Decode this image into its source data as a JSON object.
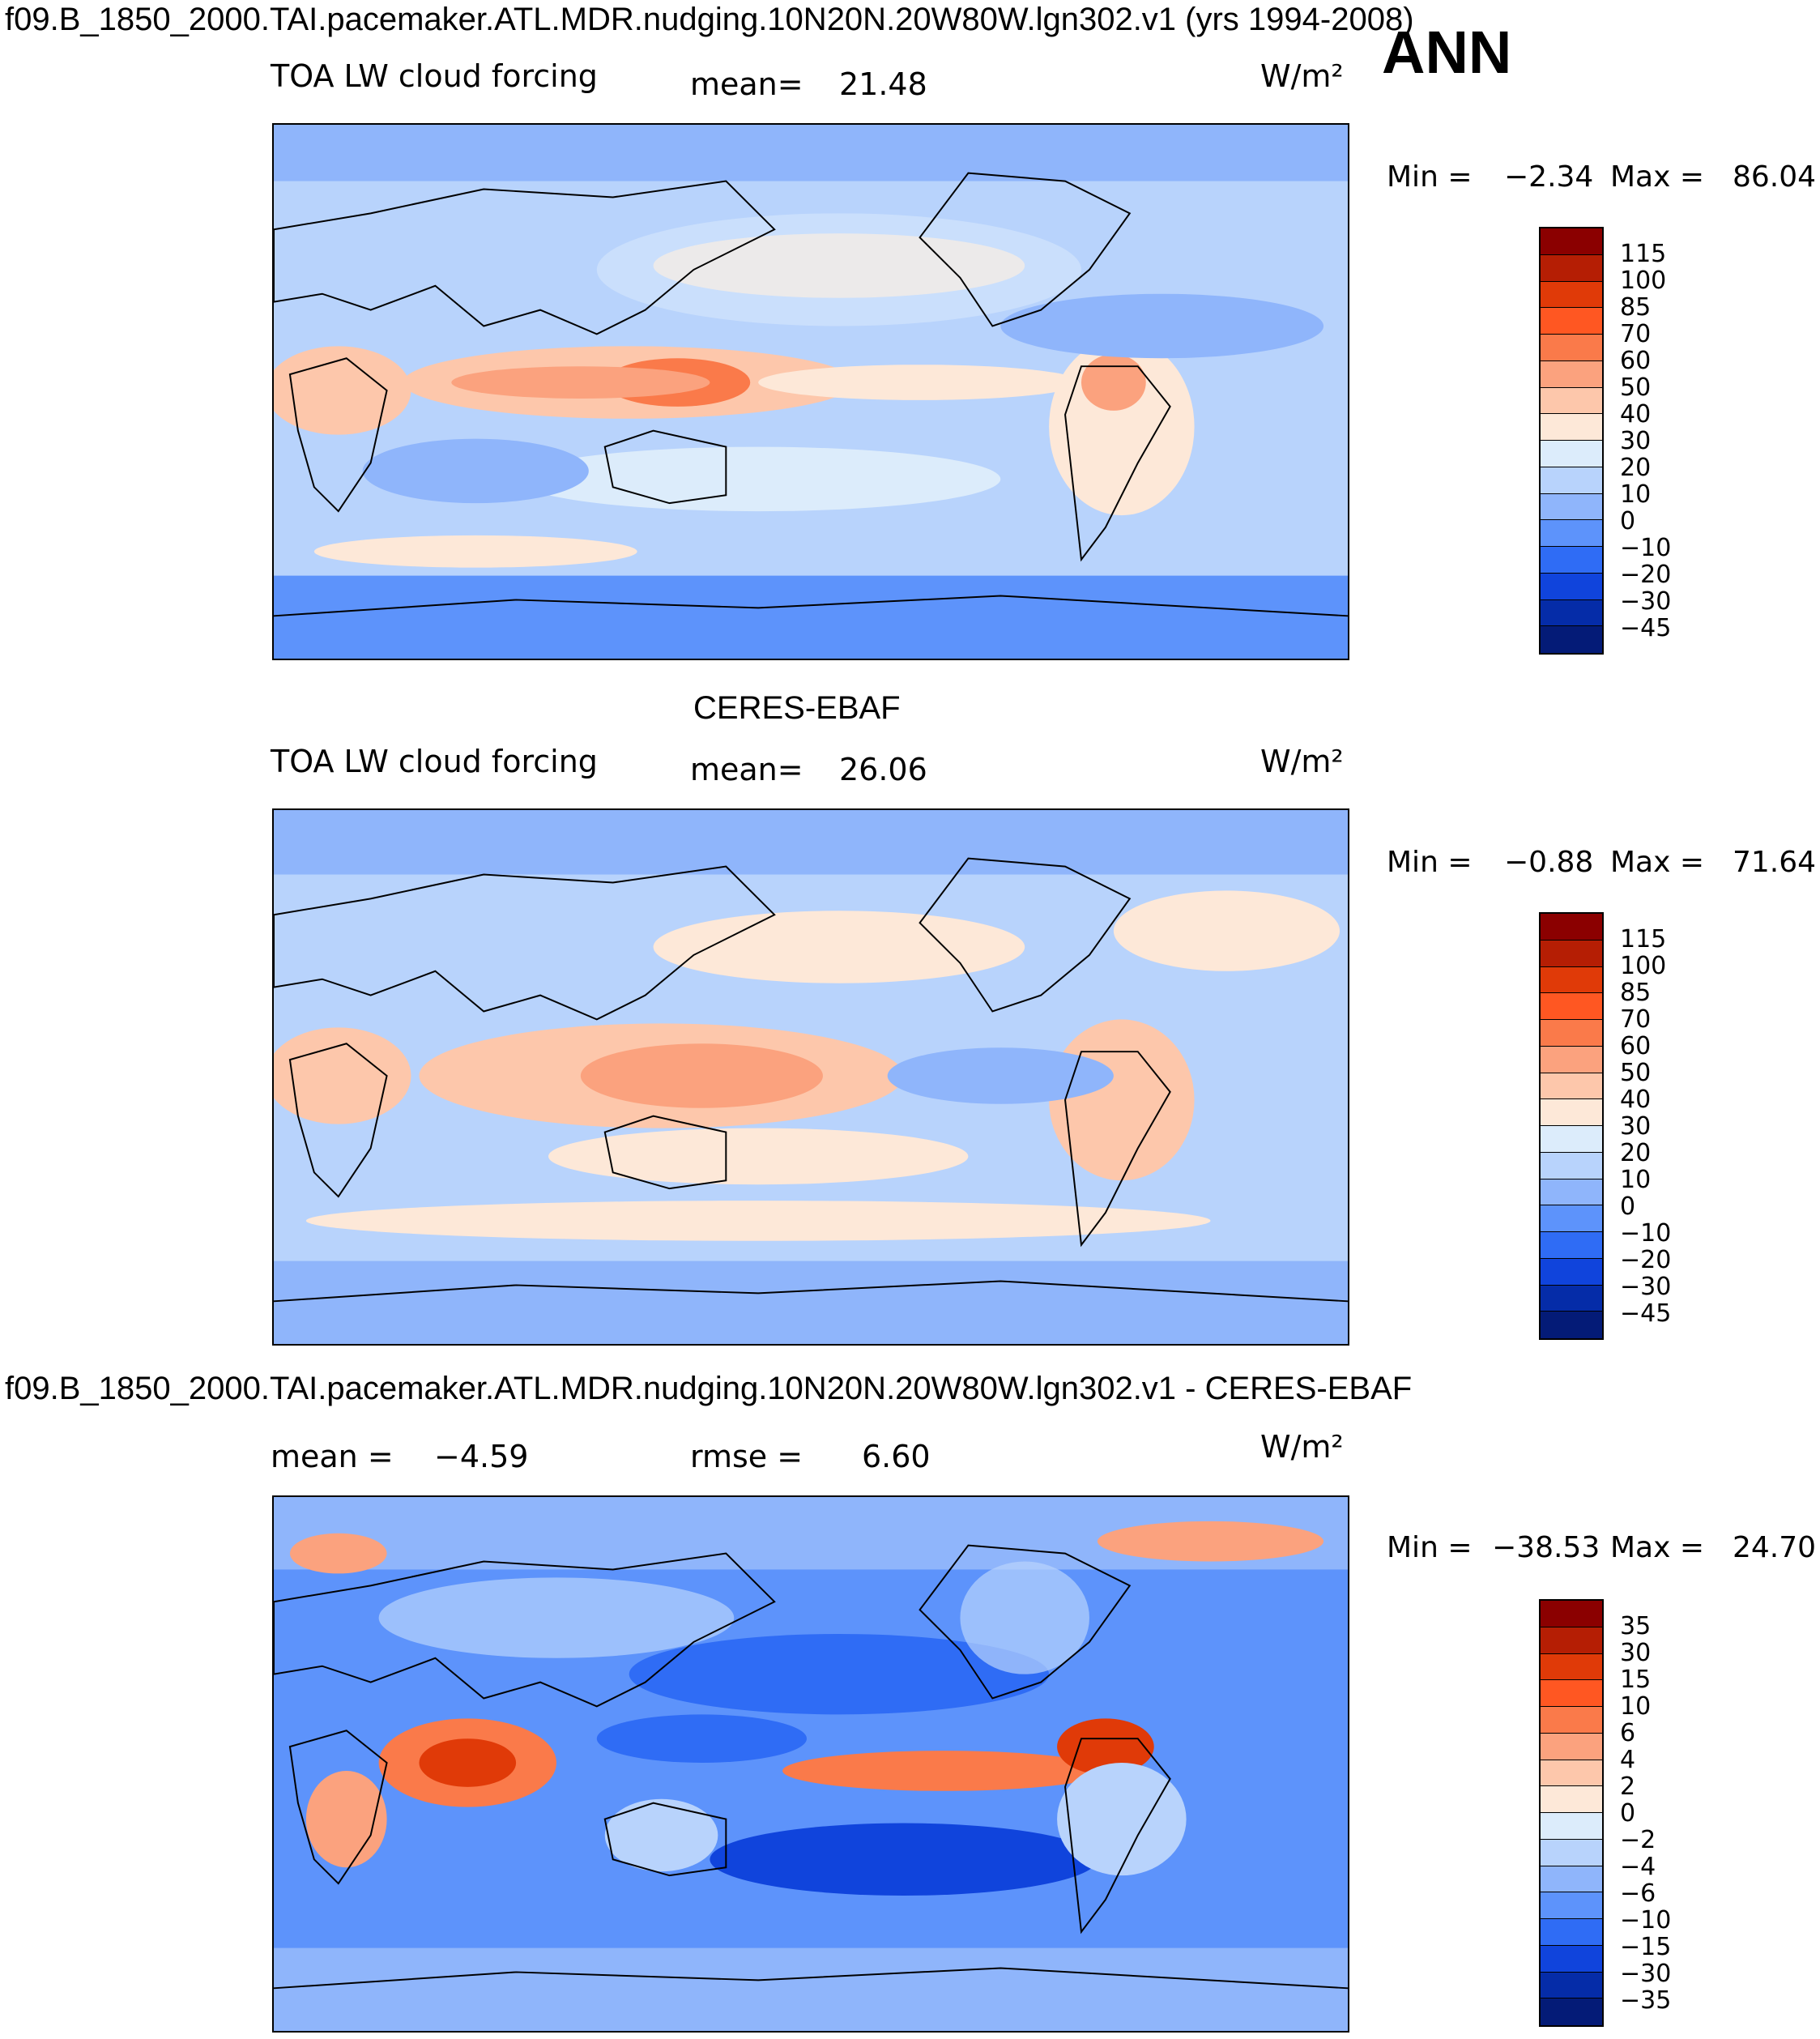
{
  "header": {
    "case_title": "f09.B_1850_2000.TAI.pacemaker.ATL.MDR.nudging.10N20N.20W80W.lgn302.v1 (yrs 1994-2008)",
    "season": "ANN"
  },
  "panels": [
    {
      "variable": "TOA LW cloud forcing",
      "mean_label": "mean=",
      "mean_value": "21.48",
      "units": "W/m²",
      "min_label": "Min =",
      "min_value": "−2.34",
      "max_label": "Max =",
      "max_value": "86.04",
      "levels": [
        "115",
        "100",
        "85",
        "70",
        "60",
        "50",
        "40",
        "30",
        "20",
        "10",
        "0",
        "−10",
        "−20",
        "−30",
        "−45"
      ]
    },
    {
      "title": "CERES-EBAF",
      "variable": "TOA LW cloud forcing",
      "mean_label": "mean=",
      "mean_value": "26.06",
      "units": "W/m²",
      "min_label": "Min =",
      "min_value": "−0.88",
      "max_label": "Max =",
      "max_value": "71.64",
      "levels": [
        "115",
        "100",
        "85",
        "70",
        "60",
        "50",
        "40",
        "30",
        "20",
        "10",
        "0",
        "−10",
        "−20",
        "−30",
        "−45"
      ]
    },
    {
      "title": "f09.B_1850_2000.TAI.pacemaker.ATL.MDR.nudging.10N20N.20W80W.lgn302.v1 - CERES-EBAF",
      "mean_label": "mean =",
      "mean_value": "−4.59",
      "rmse_label": "rmse =",
      "rmse_value": "6.60",
      "units": "W/m²",
      "min_label": "Min =",
      "min_value": "−38.53",
      "max_label": "Max =",
      "max_value": "24.70",
      "levels": [
        "35",
        "30",
        "15",
        "10",
        "6",
        "4",
        "2",
        "0",
        "−2",
        "−4",
        "−6",
        "−10",
        "−15",
        "−30",
        "−35"
      ]
    }
  ],
  "colors": {
    "bar16": [
      "#8b0000",
      "#b51e04",
      "#e03a08",
      "#ff5722",
      "#fa7a4a",
      "#fba27e",
      "#fdc7ab",
      "#fde8d8",
      "#dcecfb",
      "#b8d3fc",
      "#8fb5fb",
      "#5d93fb",
      "#2f6cf5",
      "#1044dc",
      "#052ca8",
      "#041b77"
    ],
    "low": "#b8d3fc",
    "mid": "#dcecfb",
    "warm": "#fde8d8",
    "hot": "#fba27e",
    "cold": "#5d93fb"
  }
}
